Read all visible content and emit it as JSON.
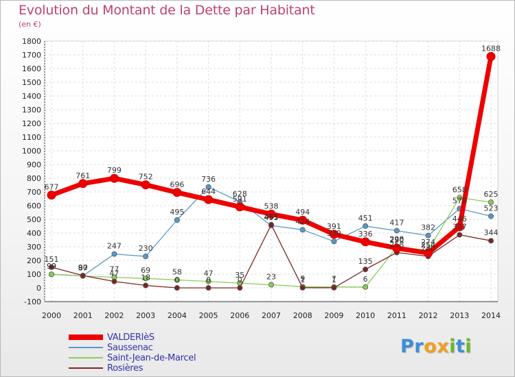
{
  "title": "Evolution du Montant de la Dette par Habitant",
  "subtitle": "(en €)",
  "logo": {
    "letters": [
      "P",
      "r",
      "o",
      "x",
      "i",
      "t",
      "i"
    ],
    "colors": [
      "#3b8fd6",
      "#3b8fd6",
      "#f0a020",
      "#f0a020",
      "#6cb52d",
      "#3b8fd6",
      "#6cb52d"
    ]
  },
  "chart_data": {
    "type": "line",
    "x": [
      "2000",
      "2001",
      "2002",
      "2003",
      "2004",
      "2005",
      "2006",
      "2007",
      "2008",
      "2009",
      "2010",
      "2011",
      "2012",
      "2013",
      "2014"
    ],
    "ylim": [
      -100,
      1800
    ],
    "yticks": [
      -100,
      0,
      100,
      200,
      300,
      400,
      500,
      600,
      700,
      800,
      900,
      1000,
      1100,
      1200,
      1300,
      1400,
      1500,
      1600,
      1700,
      1800
    ],
    "grid": true,
    "legend_position": "bottom-left",
    "series": [
      {
        "name": "VALDERIèS",
        "color": "#ee0000",
        "values": [
          677,
          761,
          799,
          752,
          696,
          644,
          591,
          538,
          494,
          391,
          336,
          290,
          254,
          446,
          1688
        ],
        "labels": [
          "677",
          "761",
          "799",
          "752",
          "696",
          "644",
          "591",
          "538",
          "494",
          "391",
          "336",
          "290",
          "254",
          "446",
          "1688"
        ]
      },
      {
        "name": "Saussenac",
        "color": "#5599cc",
        "values": [
          99,
          87,
          247,
          230,
          495,
          736,
          628,
          455,
          424,
          339,
          451,
          417,
          382,
          578,
          523
        ],
        "labels": [
          "99",
          "87",
          "247",
          "230",
          "495",
          "736",
          "628",
          "455",
          "424",
          "339",
          "451",
          "417",
          "382",
          "578",
          "523"
        ]
      },
      {
        "name": "Saint-Jean-de-Marcel",
        "color": "#88cc55",
        "values": [
          99,
          87,
          77,
          69,
          58,
          47,
          35,
          23,
          9,
          7,
          6,
          298,
          274,
          658,
          625
        ],
        "labels": [
          "99",
          "87",
          "77",
          "69",
          "58",
          "47",
          "35",
          "23",
          "9",
          "7",
          "6",
          "298",
          "274",
          "658",
          "625"
        ]
      },
      {
        "name": "Rosières",
        "color": "#7a2525",
        "values": [
          151,
          90,
          47,
          18,
          0,
          0,
          0,
          461,
          1,
          1,
          135,
          258,
          230,
          387,
          344
        ],
        "labels": [
          "151",
          "90",
          "47",
          "18",
          "0",
          "0",
          "0",
          "461",
          "1",
          "1",
          "135",
          "258",
          "230",
          "387",
          "344"
        ]
      }
    ]
  }
}
